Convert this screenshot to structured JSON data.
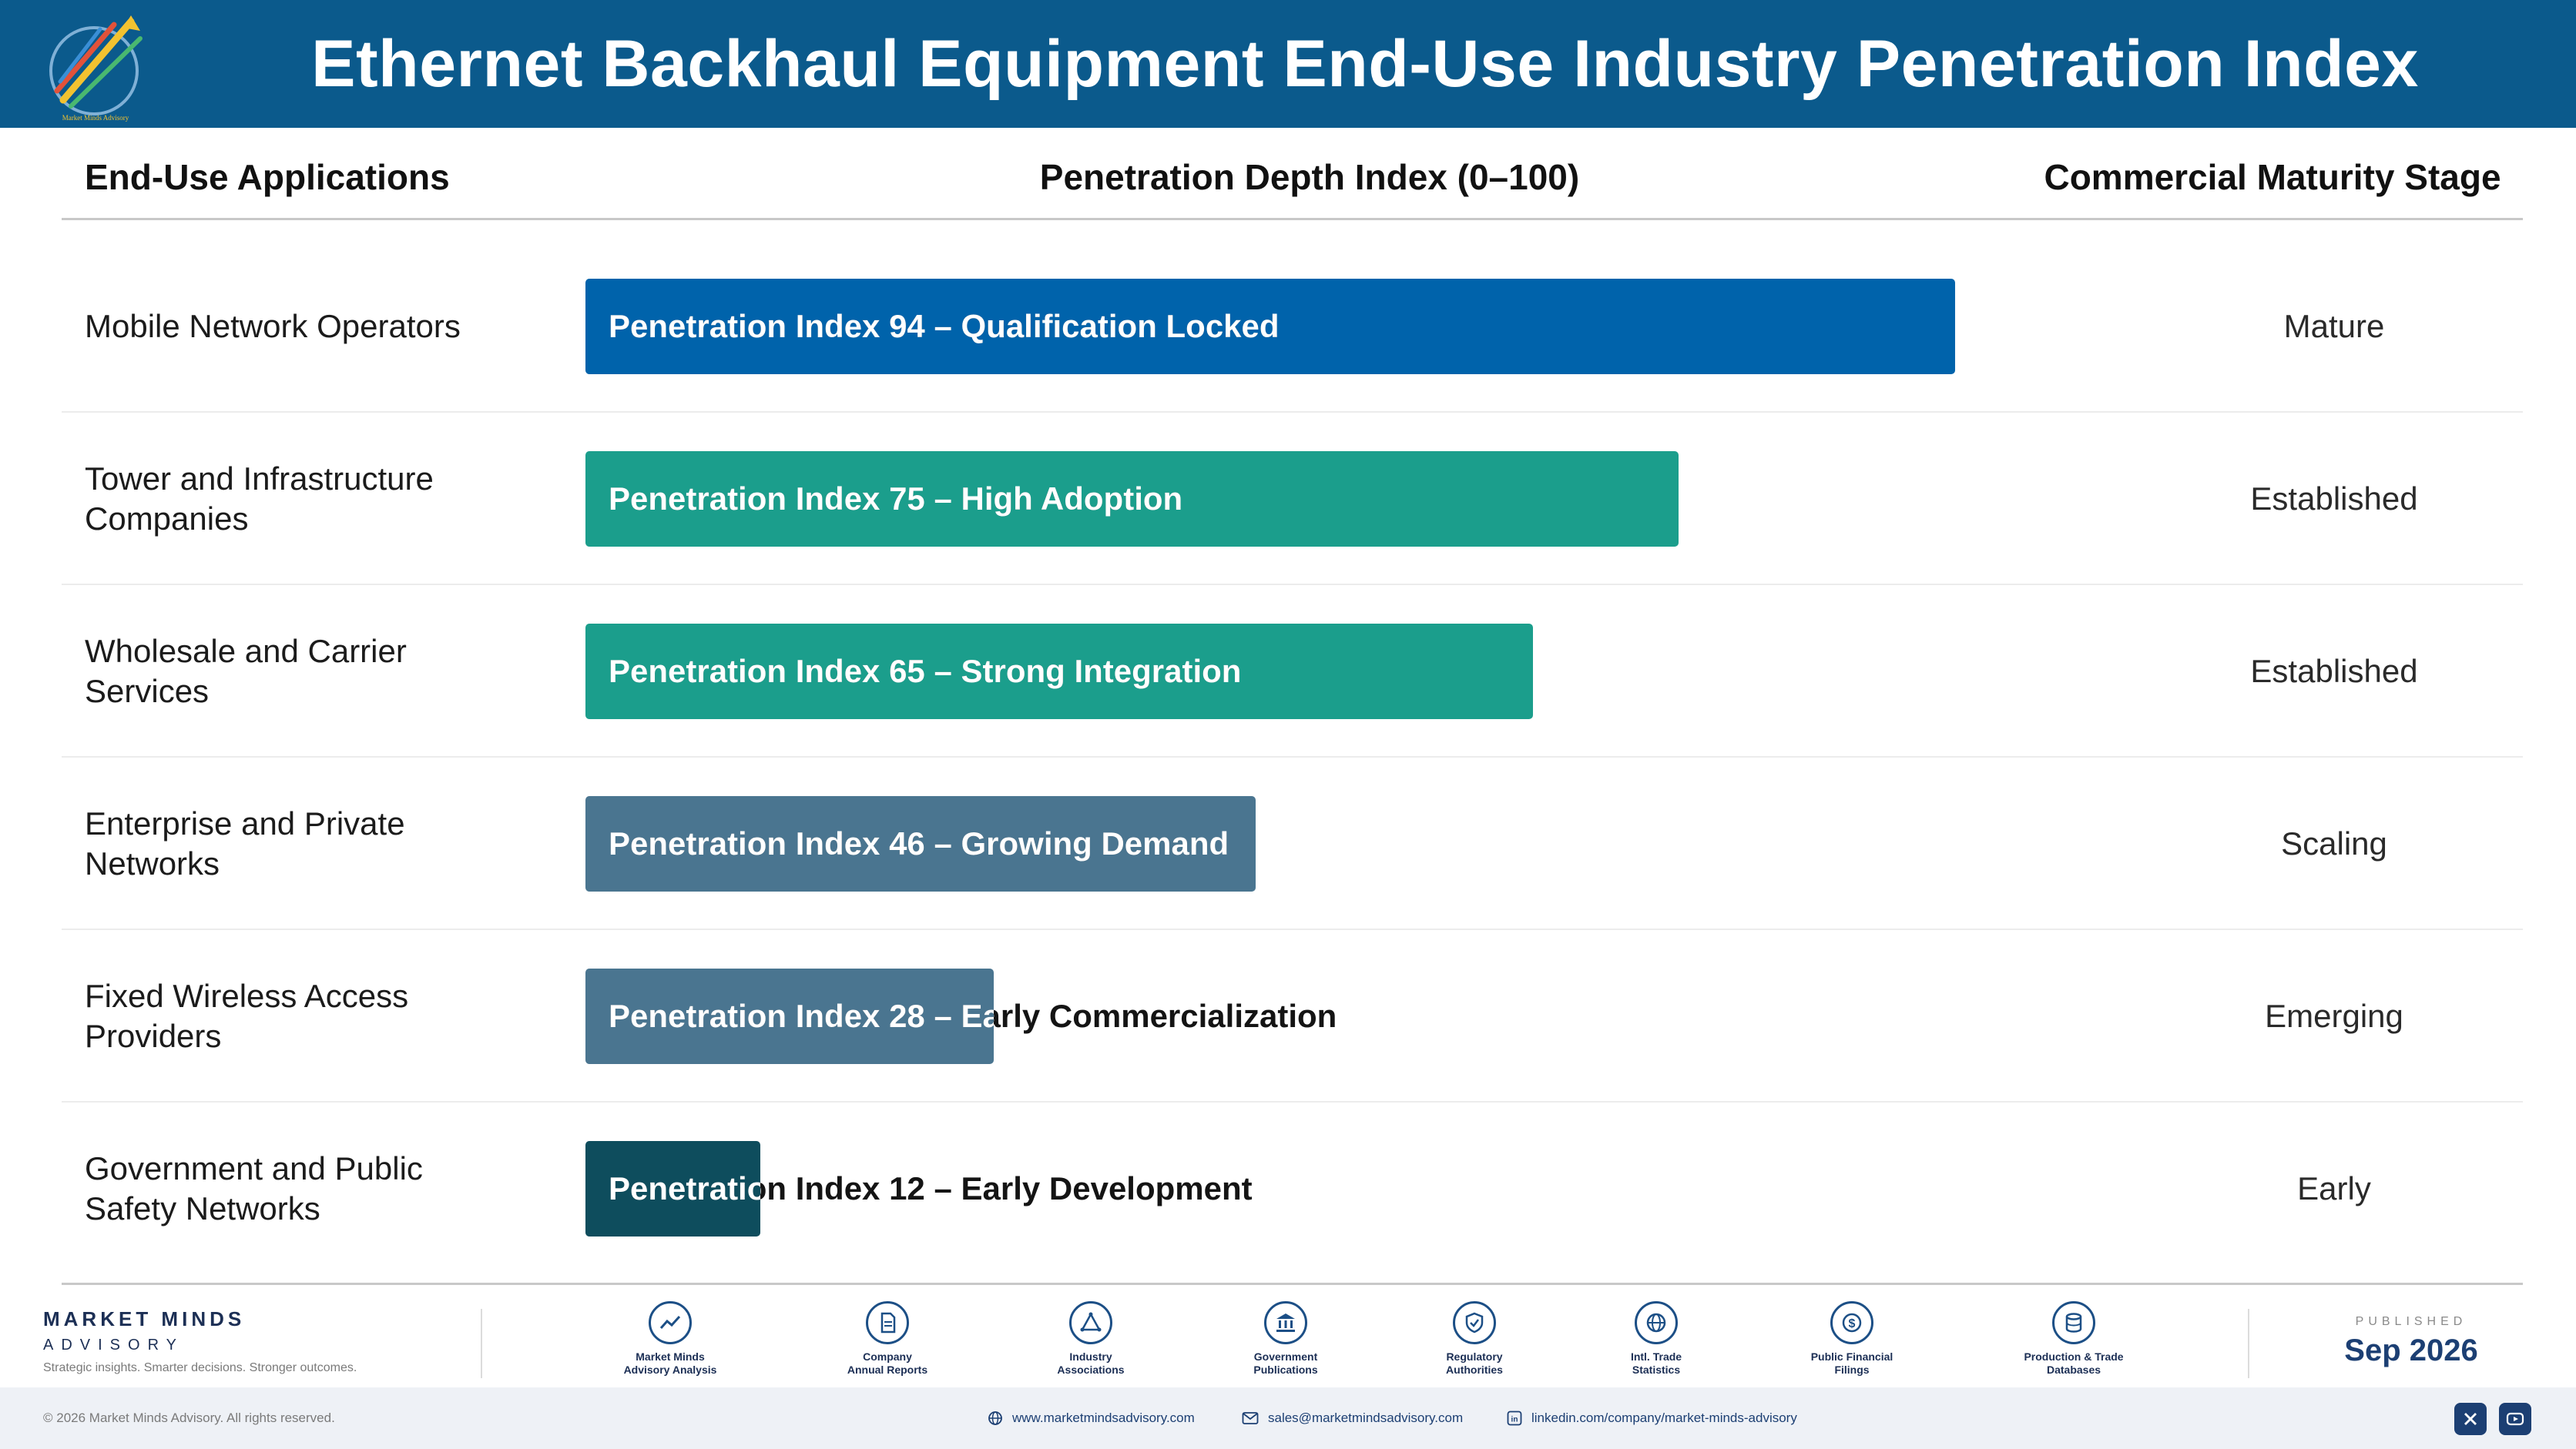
{
  "header": {
    "title": "Ethernet Backhaul Equipment End-Use Industry Penetration Index",
    "logo_text": "Market Minds Advisory"
  },
  "columns": {
    "left": "End-Use Applications",
    "middle": "Penetration Depth Index (0–100)",
    "right": "Commercial Maturity Stage"
  },
  "colors": {
    "header_bg": "#0b5a8c",
    "bar_mature": "#0063ab",
    "bar_teal": "#1b9e8c",
    "bar_slate": "#4a7590",
    "bar_dark": "#0e4d5d"
  },
  "chart_data": {
    "type": "bar",
    "orientation": "horizontal",
    "xlim": [
      0,
      100
    ],
    "categories": [
      "Mobile Network Operators",
      "Tower and Infrastructure Companies",
      "Wholesale and Carrier Services",
      "Enterprise and Private Networks",
      "Fixed Wireless Access Providers",
      "Government and Public Safety Networks"
    ],
    "values": [
      94,
      75,
      65,
      46,
      28,
      12
    ],
    "bar_labels": [
      "Penetration Index 94 – Qualification Locked",
      "Penetration Index 75 – High Adoption",
      "Penetration Index 65 – Strong Integration",
      "Penetration Index 46 – Growing Demand",
      "Penetration Index 28 – Early Commercialization",
      "Penetration Index 12 – Early Development"
    ],
    "stages": [
      "Mature",
      "Established",
      "Established",
      "Scaling",
      "Emerging",
      "Early"
    ],
    "bar_colors": [
      "#0063ab",
      "#1b9e8c",
      "#1b9e8c",
      "#4a7590",
      "#4a7590",
      "#0e4d5d"
    ]
  },
  "rows": [
    {
      "label": "Mobile Network Operators"
    },
    {
      "label": "Tower and Infrastructure\nCompanies"
    },
    {
      "label": "Wholesale and Carrier\nServices"
    },
    {
      "label": "Enterprise and Private\nNetworks"
    },
    {
      "label": "Fixed Wireless Access\nProviders"
    },
    {
      "label": "Government and Public\nSafety Networks"
    }
  ],
  "footer": {
    "brand_name": "MARKET MINDS",
    "brand_sub": "ADVISORY",
    "brand_tagline": "Strategic insights. Smarter decisions. Stronger outcomes.",
    "sources": [
      {
        "label": "Market Minds\nAdvisory Analysis",
        "icon": "chart-line-icon"
      },
      {
        "label": "Company\nAnnual Reports",
        "icon": "document-icon"
      },
      {
        "label": "Industry\nAssociations",
        "icon": "network-icon"
      },
      {
        "label": "Government\nPublications",
        "icon": "building-icon"
      },
      {
        "label": "Regulatory\nAuthorities",
        "icon": "shield-icon"
      },
      {
        "label": "Intl. Trade\nStatistics",
        "icon": "globe-icon"
      },
      {
        "label": "Public Financial\nFilings",
        "icon": "dollar-icon"
      },
      {
        "label": "Production & Trade\nDatabases",
        "icon": "database-icon"
      }
    ],
    "published_label": "PUBLISHED",
    "published_date": "Sep 2026"
  },
  "bottom_bar": {
    "copyright": "© 2026 Market Minds Advisory. All rights reserved.",
    "website": "www.marketmindsadvisory.com",
    "email": "sales@marketmindsadvisory.com",
    "linkedin": "linkedin.com/company/market-minds-advisory"
  }
}
